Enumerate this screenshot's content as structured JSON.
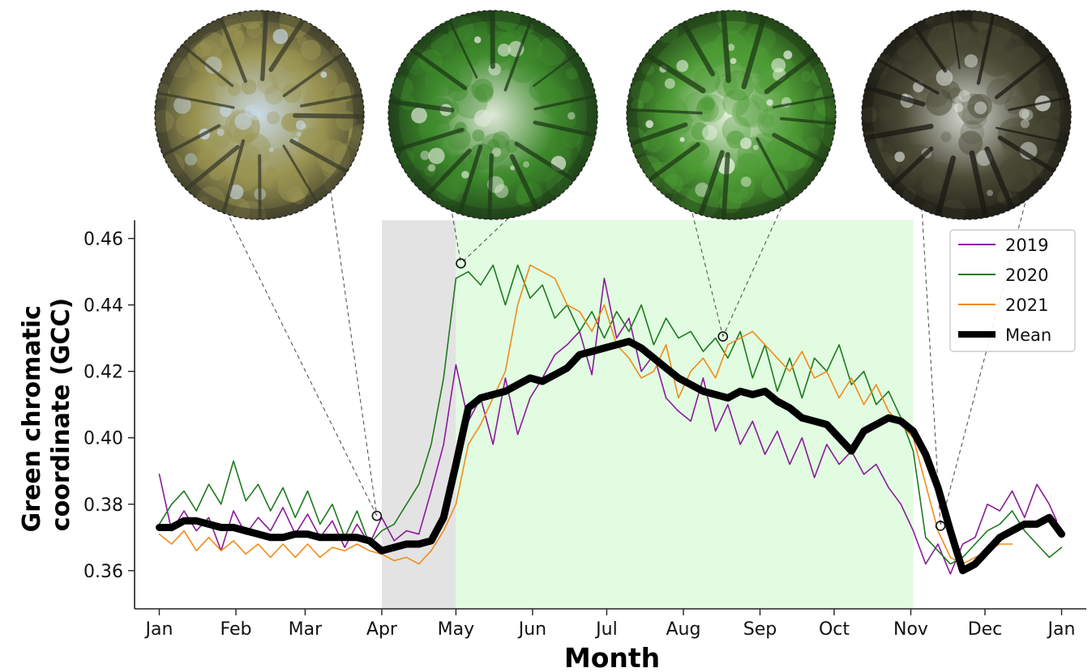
{
  "chart_data": {
    "type": "line",
    "xlabel": "Month",
    "ylabel": "Green chromatic coordinate (GCC)",
    "xlim": [
      -10,
      375
    ],
    "ylim": [
      0.3485,
      0.4655
    ],
    "x_ticks": [
      {
        "x": 0,
        "label": "Jan"
      },
      {
        "x": 31,
        "label": "Feb"
      },
      {
        "x": 59,
        "label": "Mar"
      },
      {
        "x": 90,
        "label": "Apr"
      },
      {
        "x": 120,
        "label": "May"
      },
      {
        "x": 151,
        "label": "Jun"
      },
      {
        "x": 181,
        "label": "Jul"
      },
      {
        "x": 212,
        "label": "Aug"
      },
      {
        "x": 243,
        "label": "Sep"
      },
      {
        "x": 273,
        "label": "Oct"
      },
      {
        "x": 304,
        "label": "Nov"
      },
      {
        "x": 334,
        "label": "Dec"
      },
      {
        "x": 365,
        "label": "Jan"
      }
    ],
    "y_ticks": [
      0.36,
      0.38,
      0.4,
      0.42,
      0.44,
      0.46
    ],
    "y_tick_labels": [
      "0.36",
      "0.38",
      "0.40",
      "0.42",
      "0.44",
      "0.46"
    ],
    "shaded_regions": [
      {
        "from": 90,
        "to": 120,
        "color": "#e3e3e3"
      },
      {
        "from": 120,
        "to": 305,
        "color": "#e1fce1"
      }
    ],
    "series": [
      {
        "name": "2019",
        "color": "#8b1a9b",
        "width": 1.6,
        "x": [
          0,
          5,
          10,
          15,
          20,
          25,
          30,
          35,
          40,
          45,
          50,
          55,
          60,
          65,
          70,
          75,
          80,
          85,
          90,
          95,
          100,
          105,
          110,
          115,
          120,
          125,
          130,
          135,
          140,
          145,
          150,
          155,
          160,
          165,
          170,
          175,
          180,
          185,
          190,
          195,
          200,
          205,
          210,
          215,
          220,
          225,
          230,
          235,
          240,
          245,
          250,
          255,
          260,
          265,
          270,
          275,
          280,
          285,
          290,
          295,
          300,
          305,
          310,
          315,
          320,
          325,
          330,
          335,
          340,
          345,
          350,
          355,
          360,
          363
        ],
        "y": [
          0.389,
          0.372,
          0.378,
          0.372,
          0.376,
          0.366,
          0.378,
          0.371,
          0.376,
          0.372,
          0.379,
          0.371,
          0.377,
          0.37,
          0.375,
          0.367,
          0.374,
          0.368,
          0.376,
          0.369,
          0.372,
          0.371,
          0.384,
          0.398,
          0.422,
          0.405,
          0.412,
          0.398,
          0.418,
          0.401,
          0.412,
          0.418,
          0.425,
          0.428,
          0.432,
          0.419,
          0.448,
          0.43,
          0.436,
          0.42,
          0.425,
          0.412,
          0.408,
          0.405,
          0.418,
          0.402,
          0.41,
          0.398,
          0.405,
          0.395,
          0.402,
          0.392,
          0.4,
          0.388,
          0.398,
          0.392,
          0.396,
          0.389,
          0.392,
          0.385,
          0.38,
          0.372,
          0.362,
          0.368,
          0.359,
          0.368,
          0.37,
          0.38,
          0.378,
          0.384,
          0.376,
          0.386,
          0.38,
          0.375
        ]
      },
      {
        "name": "2020",
        "color": "#1e7a1e",
        "width": 1.6,
        "x": [
          0,
          5,
          10,
          15,
          20,
          25,
          30,
          35,
          40,
          45,
          50,
          55,
          60,
          65,
          70,
          75,
          80,
          85,
          90,
          95,
          100,
          105,
          110,
          115,
          120,
          125,
          130,
          135,
          140,
          145,
          150,
          155,
          160,
          165,
          170,
          175,
          180,
          185,
          190,
          195,
          200,
          205,
          210,
          215,
          220,
          225,
          230,
          235,
          240,
          245,
          250,
          255,
          260,
          265,
          270,
          275,
          280,
          285,
          290,
          295,
          300,
          305,
          310,
          315,
          320,
          325,
          330,
          335,
          340,
          345,
          350,
          355,
          360,
          365
        ],
        "y": [
          0.374,
          0.38,
          0.384,
          0.378,
          0.386,
          0.38,
          0.393,
          0.381,
          0.386,
          0.378,
          0.385,
          0.376,
          0.384,
          0.374,
          0.38,
          0.37,
          0.378,
          0.368,
          0.372,
          0.374,
          0.38,
          0.386,
          0.398,
          0.418,
          0.448,
          0.45,
          0.446,
          0.452,
          0.44,
          0.452,
          0.442,
          0.446,
          0.436,
          0.44,
          0.432,
          0.438,
          0.43,
          0.438,
          0.432,
          0.44,
          0.428,
          0.436,
          0.43,
          0.432,
          0.426,
          0.43,
          0.424,
          0.432,
          0.418,
          0.428,
          0.414,
          0.424,
          0.412,
          0.424,
          0.42,
          0.428,
          0.416,
          0.42,
          0.41,
          0.414,
          0.406,
          0.396,
          0.37,
          0.366,
          0.362,
          0.364,
          0.368,
          0.372,
          0.374,
          0.378,
          0.372,
          0.368,
          0.364,
          0.367
        ]
      },
      {
        "name": "2021",
        "color": "#f08c1c",
        "width": 1.6,
        "x": [
          0,
          5,
          10,
          15,
          20,
          25,
          30,
          35,
          40,
          45,
          50,
          55,
          60,
          65,
          70,
          75,
          80,
          85,
          90,
          95,
          100,
          105,
          110,
          115,
          120,
          125,
          130,
          135,
          140,
          145,
          150,
          155,
          160,
          165,
          170,
          175,
          180,
          185,
          190,
          195,
          200,
          205,
          210,
          215,
          220,
          225,
          230,
          235,
          240,
          245,
          250,
          255,
          260,
          265,
          270,
          275,
          280,
          285,
          290,
          295,
          300,
          305,
          310,
          315,
          320,
          325,
          330,
          335,
          340,
          345
        ],
        "y": [
          0.371,
          0.368,
          0.372,
          0.366,
          0.37,
          0.366,
          0.369,
          0.365,
          0.368,
          0.364,
          0.368,
          0.364,
          0.368,
          0.364,
          0.367,
          0.366,
          0.368,
          0.366,
          0.365,
          0.363,
          0.364,
          0.362,
          0.366,
          0.372,
          0.38,
          0.398,
          0.404,
          0.412,
          0.42,
          0.44,
          0.452,
          0.45,
          0.448,
          0.44,
          0.438,
          0.432,
          0.44,
          0.428,
          0.424,
          0.418,
          0.42,
          0.428,
          0.412,
          0.42,
          0.424,
          0.418,
          0.428,
          0.43,
          0.432,
          0.428,
          0.424,
          0.42,
          0.426,
          0.418,
          0.42,
          0.412,
          0.418,
          0.41,
          0.416,
          0.408,
          0.404,
          0.4,
          0.386,
          0.372,
          0.364,
          0.362,
          0.364,
          0.366,
          0.368,
          0.368
        ]
      },
      {
        "name": "Mean",
        "color": "#000000",
        "width": 9,
        "x": [
          0,
          5,
          10,
          15,
          20,
          25,
          30,
          35,
          40,
          45,
          50,
          55,
          60,
          65,
          70,
          75,
          80,
          85,
          90,
          95,
          100,
          105,
          110,
          115,
          120,
          125,
          130,
          135,
          140,
          145,
          150,
          155,
          160,
          165,
          170,
          175,
          180,
          185,
          190,
          195,
          200,
          205,
          210,
          215,
          220,
          225,
          230,
          235,
          240,
          245,
          250,
          255,
          260,
          265,
          270,
          275,
          280,
          285,
          290,
          295,
          300,
          305,
          310,
          315,
          320,
          325,
          330,
          335,
          340,
          345,
          350,
          355,
          360,
          365
        ],
        "y": [
          0.373,
          0.373,
          0.375,
          0.375,
          0.374,
          0.373,
          0.373,
          0.372,
          0.371,
          0.37,
          0.37,
          0.371,
          0.371,
          0.37,
          0.37,
          0.37,
          0.37,
          0.369,
          0.366,
          0.367,
          0.368,
          0.368,
          0.369,
          0.376,
          0.392,
          0.409,
          0.412,
          0.413,
          0.414,
          0.416,
          0.418,
          0.417,
          0.419,
          0.421,
          0.425,
          0.426,
          0.427,
          0.428,
          0.429,
          0.427,
          0.424,
          0.421,
          0.418,
          0.416,
          0.414,
          0.413,
          0.412,
          0.414,
          0.413,
          0.414,
          0.411,
          0.409,
          0.406,
          0.405,
          0.404,
          0.4,
          0.396,
          0.402,
          0.404,
          0.406,
          0.405,
          0.402,
          0.395,
          0.385,
          0.372,
          0.36,
          0.362,
          0.366,
          0.37,
          0.372,
          0.374,
          0.374,
          0.376,
          0.371
        ]
      }
    ],
    "markers": [
      {
        "x": 88,
        "y": 0.3765
      },
      {
        "x": 122,
        "y": 0.4525
      },
      {
        "x": 228,
        "y": 0.4305
      },
      {
        "x": 316,
        "y": 0.3735
      }
    ],
    "inset_photos": [
      {
        "x": 88,
        "y": 0.3765,
        "sky": "#c9d9e6",
        "canopy": "#9a9452",
        "trunk": "#3a3a2a"
      },
      {
        "x": 122,
        "y": 0.4525,
        "sky": "#dfe8d8",
        "canopy": "#3e8a2c",
        "trunk": "#1d3a18"
      },
      {
        "x": 228,
        "y": 0.4305,
        "sky": "#eaf1e4",
        "canopy": "#4d9b35",
        "trunk": "#1e3a16"
      },
      {
        "x": 316,
        "y": 0.3735,
        "sky": "#d9dcd6",
        "canopy": "#4a4a36",
        "trunk": "#1a1a14"
      }
    ],
    "legend": {
      "position": "top-right",
      "entries": [
        "2019",
        "2020",
        "2021",
        "Mean"
      ]
    }
  }
}
